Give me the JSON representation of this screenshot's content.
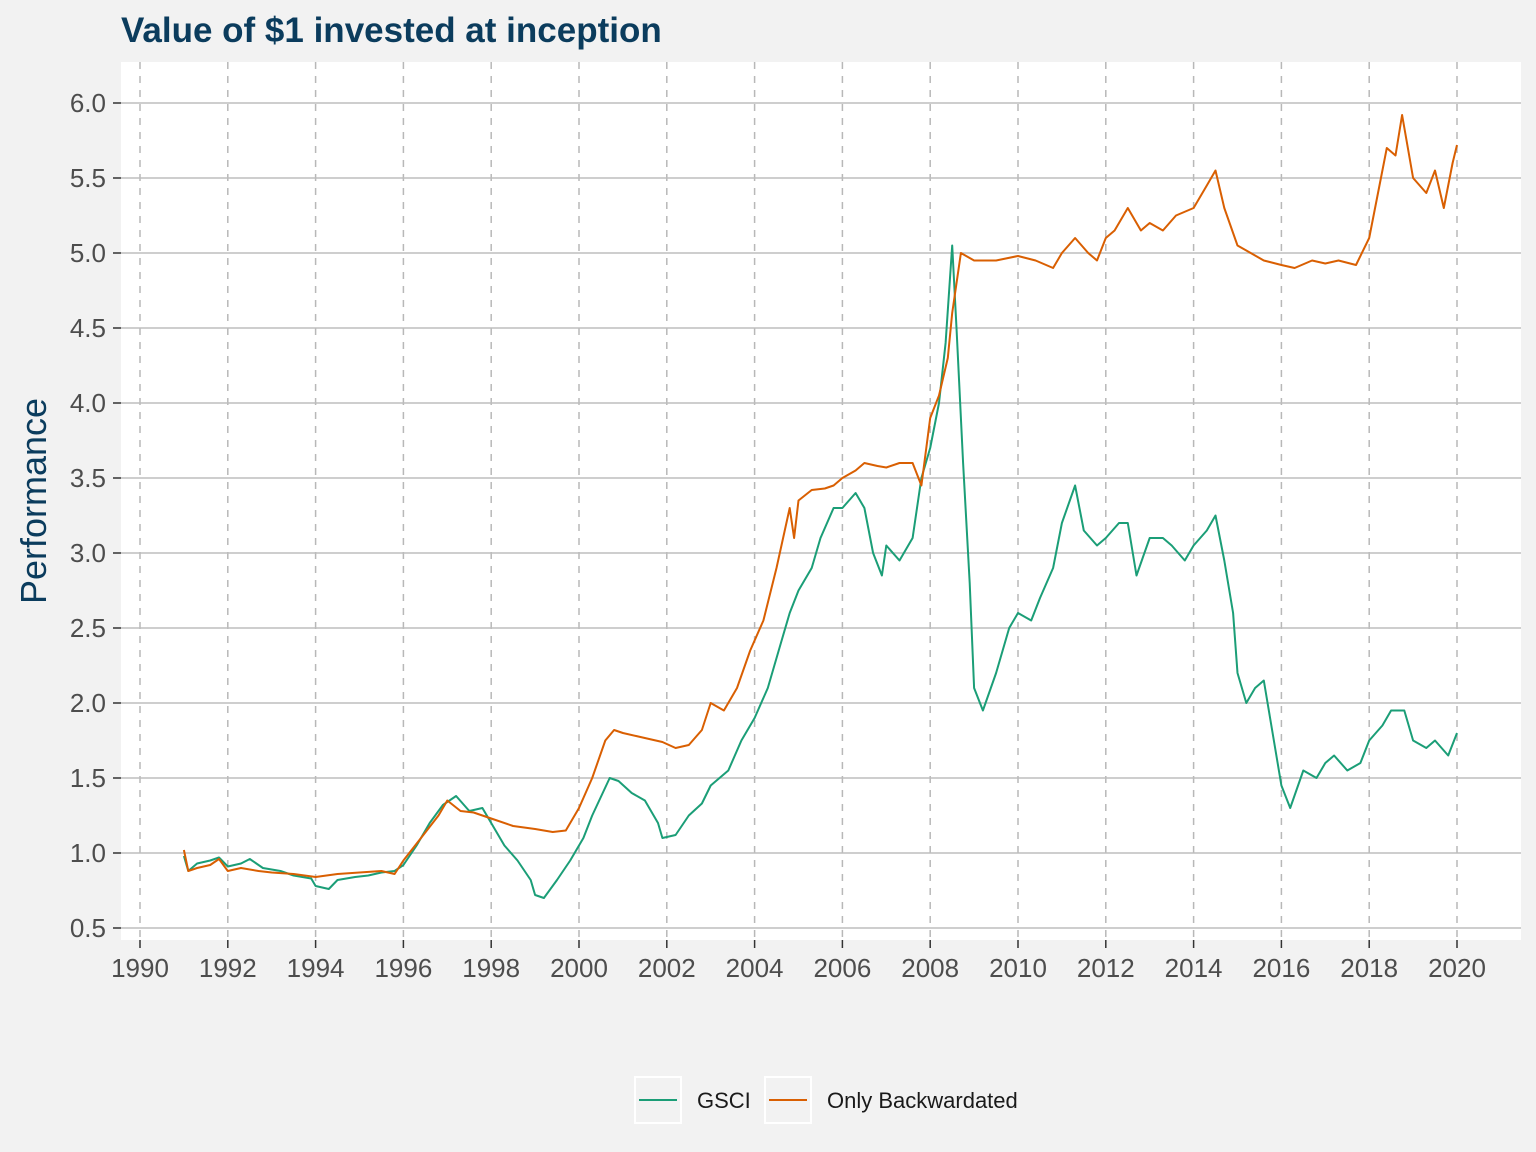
{
  "colors": {
    "background": "#f2f2f2",
    "panel": "#ffffff",
    "title": "#0b3c5d",
    "grid_major": "#bdbdbd",
    "grid_vertical": "#b8b8b8",
    "gsci": "#1b9e77",
    "backwardated": "#d95f02"
  },
  "chart_data": {
    "type": "line",
    "title": "Value of $1 invested at inception",
    "xlabel": "",
    "ylabel": "Performance",
    "xlim": [
      1990,
      2020
    ],
    "ylim": [
      0.5,
      6.0
    ],
    "x_ticks": [
      "1990",
      "1992",
      "1994",
      "1996",
      "1998",
      "2000",
      "2002",
      "2004",
      "2006",
      "2008",
      "2010",
      "2012",
      "2014",
      "2016",
      "2018",
      "2020"
    ],
    "y_ticks": [
      "0.5",
      "1.0",
      "1.5",
      "2.0",
      "2.5",
      "3.0",
      "3.5",
      "4.0",
      "4.5",
      "5.0",
      "5.5",
      "6.0"
    ],
    "grid": true,
    "legend_position": "bottom",
    "series": [
      {
        "name": "GSCI",
        "color": "#1b9e77",
        "x": [
          1991.0,
          1991.1,
          1991.3,
          1991.6,
          1991.8,
          1992.0,
          1992.3,
          1992.5,
          1992.8,
          1993.2,
          1993.5,
          1993.9,
          1994.0,
          1994.3,
          1994.5,
          1994.9,
          1995.2,
          1995.5,
          1995.8,
          1996.0,
          1996.3,
          1996.6,
          1996.9,
          1997.2,
          1997.5,
          1997.8,
          1998.0,
          1998.3,
          1998.6,
          1998.9,
          1999.0,
          1999.2,
          1999.5,
          1999.8,
          2000.1,
          2000.3,
          2000.7,
          2000.9,
          2001.2,
          2001.5,
          2001.8,
          2001.9,
          2002.2,
          2002.5,
          2002.8,
          2003.0,
          2003.2,
          2003.4,
          2003.7,
          2004.0,
          2004.3,
          2004.6,
          2004.8,
          2005.0,
          2005.3,
          2005.5,
          2005.8,
          2006.0,
          2006.3,
          2006.5,
          2006.7,
          2006.9,
          2007.0,
          2007.3,
          2007.6,
          2007.8,
          2008.0,
          2008.2,
          2008.35,
          2008.5,
          2008.6,
          2008.75,
          2008.9,
          2009.0,
          2009.2,
          2009.5,
          2009.8,
          2010.0,
          2010.3,
          2010.5,
          2010.8,
          2011.0,
          2011.3,
          2011.5,
          2011.8,
          2012.0,
          2012.3,
          2012.5,
          2012.7,
          2013.0,
          2013.3,
          2013.5,
          2013.8,
          2014.0,
          2014.3,
          2014.5,
          2014.7,
          2014.9,
          2015.0,
          2015.2,
          2015.4,
          2015.6,
          2015.8,
          2016.0,
          2016.2,
          2016.5,
          2016.8,
          2017.0,
          2017.2,
          2017.5,
          2017.8,
          2018.0,
          2018.3,
          2018.5,
          2018.8,
          2019.0,
          2019.3,
          2019.5,
          2019.8,
          2020.0
        ],
        "y": [
          0.98,
          0.88,
          0.93,
          0.95,
          0.97,
          0.91,
          0.93,
          0.96,
          0.9,
          0.88,
          0.85,
          0.83,
          0.78,
          0.76,
          0.82,
          0.84,
          0.85,
          0.87,
          0.88,
          0.92,
          1.05,
          1.2,
          1.32,
          1.38,
          1.28,
          1.3,
          1.2,
          1.05,
          0.95,
          0.82,
          0.72,
          0.7,
          0.82,
          0.95,
          1.1,
          1.25,
          1.5,
          1.48,
          1.4,
          1.35,
          1.2,
          1.1,
          1.12,
          1.25,
          1.33,
          1.45,
          1.5,
          1.55,
          1.75,
          1.9,
          2.1,
          2.4,
          2.6,
          2.75,
          2.9,
          3.1,
          3.3,
          3.3,
          3.4,
          3.3,
          3.0,
          2.85,
          3.05,
          2.95,
          3.1,
          3.5,
          3.7,
          4.0,
          4.4,
          5.05,
          4.5,
          3.6,
          2.8,
          2.1,
          1.95,
          2.2,
          2.5,
          2.6,
          2.55,
          2.7,
          2.9,
          3.2,
          3.45,
          3.15,
          3.05,
          3.1,
          3.2,
          3.2,
          2.85,
          3.1,
          3.1,
          3.05,
          2.95,
          3.05,
          3.15,
          3.25,
          2.95,
          2.6,
          2.2,
          2.0,
          2.1,
          2.15,
          1.8,
          1.45,
          1.3,
          1.55,
          1.5,
          1.6,
          1.65,
          1.55,
          1.6,
          1.75,
          1.85,
          1.95,
          1.95,
          1.75,
          1.7,
          1.75,
          1.65,
          1.8
        ]
      },
      {
        "name": "Only Backwardated",
        "color": "#d95f02",
        "x": [
          1991.0,
          1991.1,
          1991.3,
          1991.6,
          1991.8,
          1992.0,
          1992.3,
          1992.7,
          1993.0,
          1993.5,
          1994.0,
          1994.5,
          1995.0,
          1995.5,
          1995.8,
          1996.0,
          1996.4,
          1996.8,
          1997.0,
          1997.3,
          1997.6,
          1998.0,
          1998.5,
          1999.0,
          1999.4,
          1999.7,
          2000.0,
          2000.3,
          2000.6,
          2000.8,
          2001.0,
          2001.3,
          2001.6,
          2001.9,
          2002.2,
          2002.5,
          2002.8,
          2003.0,
          2003.3,
          2003.6,
          2003.9,
          2004.2,
          2004.5,
          2004.8,
          2004.9,
          2005.0,
          2005.3,
          2005.6,
          2005.8,
          2006.0,
          2006.3,
          2006.5,
          2006.8,
          2007.0,
          2007.3,
          2007.6,
          2007.8,
          2008.0,
          2008.2,
          2008.4,
          2008.5,
          2008.7,
          2009.0,
          2009.5,
          2010.0,
          2010.4,
          2010.8,
          2011.0,
          2011.3,
          2011.6,
          2011.8,
          2012.0,
          2012.2,
          2012.5,
          2012.8,
          2013.0,
          2013.3,
          2013.6,
          2014.0,
          2014.3,
          2014.5,
          2014.7,
          2015.0,
          2015.3,
          2015.6,
          2016.0,
          2016.3,
          2016.7,
          2017.0,
          2017.3,
          2017.7,
          2018.0,
          2018.2,
          2018.4,
          2018.6,
          2018.75,
          2019.0,
          2019.3,
          2019.5,
          2019.7,
          2019.9,
          2020.0
        ],
        "y": [
          1.02,
          0.88,
          0.9,
          0.92,
          0.96,
          0.88,
          0.9,
          0.88,
          0.87,
          0.86,
          0.84,
          0.86,
          0.87,
          0.88,
          0.86,
          0.95,
          1.1,
          1.25,
          1.35,
          1.28,
          1.27,
          1.23,
          1.18,
          1.16,
          1.14,
          1.15,
          1.3,
          1.5,
          1.75,
          1.82,
          1.8,
          1.78,
          1.76,
          1.74,
          1.7,
          1.72,
          1.82,
          2.0,
          1.95,
          2.1,
          2.35,
          2.55,
          2.9,
          3.3,
          3.1,
          3.35,
          3.42,
          3.43,
          3.45,
          3.5,
          3.55,
          3.6,
          3.58,
          3.57,
          3.6,
          3.6,
          3.45,
          3.9,
          4.05,
          4.3,
          4.6,
          5.0,
          4.95,
          4.95,
          4.98,
          4.95,
          4.9,
          5.0,
          5.1,
          5.0,
          4.95,
          5.1,
          5.15,
          5.3,
          5.15,
          5.2,
          5.15,
          5.25,
          5.3,
          5.45,
          5.55,
          5.3,
          5.05,
          5.0,
          4.95,
          4.92,
          4.9,
          4.95,
          4.93,
          4.95,
          4.92,
          5.1,
          5.4,
          5.7,
          5.65,
          5.92,
          5.5,
          5.4,
          5.55,
          5.3,
          5.6,
          5.72
        ]
      }
    ]
  }
}
